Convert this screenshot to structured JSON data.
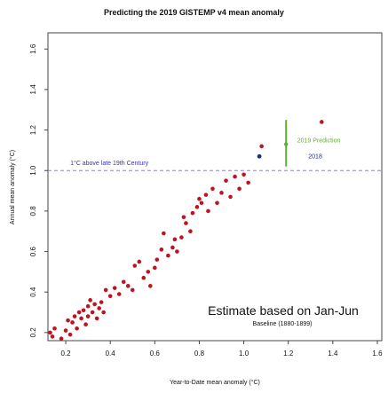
{
  "chart_data": {
    "type": "scatter",
    "title": "Predicting the 2019 GISTEMP v4 mean anomaly",
    "xlabel": "Year-to-Date mean anomaly (°C)",
    "ylabel": "Annual mean anomaly (°C)",
    "xlim": [
      0.12,
      1.62
    ],
    "ylim": [
      0.16,
      1.68
    ],
    "x_ticks": [
      "0.2",
      "0.4",
      "0.6",
      "0.8",
      "1.0",
      "1.2",
      "1.4",
      "1.6"
    ],
    "y_ticks": [
      "0.2",
      "0.4",
      "0.6",
      "0.8",
      "1.0",
      "1.2",
      "1.4",
      "1.6"
    ],
    "x_tick_values": [
      0.2,
      0.4,
      0.6,
      0.8,
      1.0,
      1.2,
      1.4,
      1.6
    ],
    "y_tick_values": [
      0.2,
      0.4,
      0.6,
      0.8,
      1.0,
      1.2,
      1.4,
      1.6
    ],
    "grid": false,
    "colors": {
      "points": "#c1121f",
      "highlight_2018": "#1f2a8a",
      "prediction": "#5bb031",
      "reference_line": "#8a86c7",
      "reference_text": "#3a33b5"
    },
    "series": [
      {
        "points": [
          {
            "x": 0.13,
            "y": 0.2
          },
          {
            "x": 0.14,
            "y": 0.18
          },
          {
            "x": 0.15,
            "y": 0.22
          },
          {
            "x": 0.18,
            "y": 0.17
          },
          {
            "x": 0.2,
            "y": 0.21
          },
          {
            "x": 0.21,
            "y": 0.26
          },
          {
            "x": 0.22,
            "y": 0.19
          },
          {
            "x": 0.23,
            "y": 0.25
          },
          {
            "x": 0.24,
            "y": 0.28
          },
          {
            "x": 0.25,
            "y": 0.22
          },
          {
            "x": 0.26,
            "y": 0.3
          },
          {
            "x": 0.27,
            "y": 0.27
          },
          {
            "x": 0.28,
            "y": 0.31
          },
          {
            "x": 0.29,
            "y": 0.24
          },
          {
            "x": 0.3,
            "y": 0.33
          },
          {
            "x": 0.3,
            "y": 0.28
          },
          {
            "x": 0.31,
            "y": 0.36
          },
          {
            "x": 0.32,
            "y": 0.3
          },
          {
            "x": 0.33,
            "y": 0.34
          },
          {
            "x": 0.34,
            "y": 0.27
          },
          {
            "x": 0.35,
            "y": 0.32
          },
          {
            "x": 0.36,
            "y": 0.35
          },
          {
            "x": 0.37,
            "y": 0.3
          },
          {
            "x": 0.38,
            "y": 0.41
          },
          {
            "x": 0.4,
            "y": 0.38
          },
          {
            "x": 0.42,
            "y": 0.42
          },
          {
            "x": 0.44,
            "y": 0.39
          },
          {
            "x": 0.46,
            "y": 0.45
          },
          {
            "x": 0.48,
            "y": 0.43
          },
          {
            "x": 0.5,
            "y": 0.41
          },
          {
            "x": 0.51,
            "y": 0.53
          },
          {
            "x": 0.53,
            "y": 0.55
          },
          {
            "x": 0.55,
            "y": 0.47
          },
          {
            "x": 0.57,
            "y": 0.5
          },
          {
            "x": 0.58,
            "y": 0.43
          },
          {
            "x": 0.6,
            "y": 0.52
          },
          {
            "x": 0.61,
            "y": 0.56
          },
          {
            "x": 0.63,
            "y": 0.61
          },
          {
            "x": 0.64,
            "y": 0.69
          },
          {
            "x": 0.66,
            "y": 0.58
          },
          {
            "x": 0.68,
            "y": 0.62
          },
          {
            "x": 0.69,
            "y": 0.66
          },
          {
            "x": 0.7,
            "y": 0.6
          },
          {
            "x": 0.72,
            "y": 0.67
          },
          {
            "x": 0.73,
            "y": 0.77
          },
          {
            "x": 0.74,
            "y": 0.74
          },
          {
            "x": 0.76,
            "y": 0.7
          },
          {
            "x": 0.77,
            "y": 0.79
          },
          {
            "x": 0.79,
            "y": 0.82
          },
          {
            "x": 0.8,
            "y": 0.86
          },
          {
            "x": 0.81,
            "y": 0.84
          },
          {
            "x": 0.83,
            "y": 0.88
          },
          {
            "x": 0.84,
            "y": 0.8
          },
          {
            "x": 0.86,
            "y": 0.91
          },
          {
            "x": 0.88,
            "y": 0.84
          },
          {
            "x": 0.9,
            "y": 0.89
          },
          {
            "x": 0.92,
            "y": 0.95
          },
          {
            "x": 0.94,
            "y": 0.87
          },
          {
            "x": 0.96,
            "y": 0.97
          },
          {
            "x": 0.98,
            "y": 0.91
          },
          {
            "x": 1.0,
            "y": 0.98
          },
          {
            "x": 1.02,
            "y": 0.94
          },
          {
            "x": 1.08,
            "y": 1.12
          },
          {
            "x": 1.35,
            "y": 1.24
          }
        ]
      }
    ],
    "highlighted_point": {
      "x": 1.07,
      "y": 1.07,
      "label": "2018"
    },
    "prediction": {
      "label": "2019 Prediction",
      "x": 1.19,
      "y": 1.13,
      "y_low": 1.02,
      "y_high": 1.25
    },
    "reference_line": {
      "y": 1.0,
      "label": "1°C above late 19th Century"
    },
    "annotations": {
      "main": "Estimate based on Jan-Jun",
      "baseline": "Baseline (1880-1899)"
    }
  }
}
